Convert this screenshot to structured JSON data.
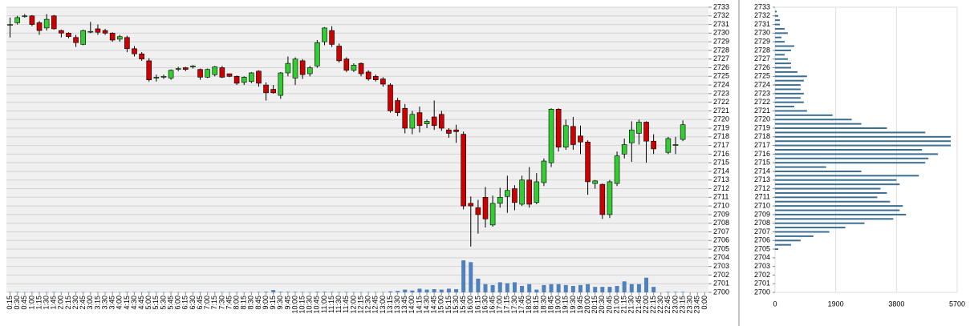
{
  "chart_data": [
    {
      "type": "candlestick",
      "categories": [
        "0:15",
        "0:30",
        "0:45",
        "1:00",
        "1:15",
        "1:30",
        "1:45",
        "2:00",
        "2:15",
        "2:30",
        "2:45",
        "3:00",
        "3:15",
        "3:30",
        "3:45",
        "4:00",
        "4:15",
        "4:30",
        "4:45",
        "5:00",
        "5:15",
        "5:30",
        "5:45",
        "6:00",
        "6:15",
        "6:30",
        "6:45",
        "7:00",
        "7:15",
        "7:30",
        "7:45",
        "8:00",
        "8:15",
        "8:30",
        "8:45",
        "9:00",
        "9:15",
        "9:30",
        "9:45",
        "10:00",
        "10:15",
        "10:30",
        "10:45",
        "11:00",
        "11:15",
        "11:30",
        "11:45",
        "12:00",
        "12:15",
        "12:30",
        "12:45",
        "13:00",
        "13:15",
        "13:30",
        "13:45",
        "14:00",
        "14:15",
        "14:30",
        "14:45",
        "15:00",
        "15:15",
        "15:30",
        "15:45",
        "16:00",
        "16:15",
        "16:30",
        "16:45",
        "17:00",
        "17:15",
        "17:30",
        "17:45",
        "18:00",
        "18:15",
        "18:30",
        "18:45",
        "19:00",
        "19:15",
        "19:30",
        "19:45",
        "20:00",
        "20:15",
        "20:30",
        "20:45",
        "21:00",
        "21:15",
        "21:30",
        "21:45",
        "22:00",
        "22:15",
        "22:30",
        "22:45",
        "23:00",
        "23:15",
        "23:30",
        "23:45",
        "0:00"
      ],
      "open": [
        2731,
        2731.2,
        2732,
        2732,
        2731.2,
        2730.6,
        2732,
        2730.3,
        2730,
        2729.5,
        2728.7,
        2730.2,
        2730.5,
        2730.3,
        2730,
        2729.3,
        2729.5,
        2728.2,
        2727.6,
        2726.8,
        2724.8,
        2724.9,
        2724.8,
        2725.8,
        2726,
        2726.1,
        2725.8,
        2724.9,
        2725.2,
        2726,
        2725.3,
        2725,
        2724.3,
        2724.4,
        2725.6,
        2724,
        2723.5,
        2722.8,
        2725.4,
        2724.8,
        2726.8,
        2725.3,
        2726.2,
        2729,
        2730.3,
        2728.5,
        2727,
        2725.7,
        2726.5,
        2725.5,
        2725,
        2724.7,
        2724,
        2722.2,
        2721.3,
        2719,
        2720.8,
        2719.5,
        2720.3,
        2720.6,
        2718.8,
        2718.8,
        2718.3,
        2710.3,
        2709.8,
        2711,
        2707.8,
        2710.3,
        2711.1,
        2712,
        2710.2,
        2713,
        2710.4,
        2712.7,
        2715,
        2721.2,
        2716.8,
        2719.2,
        2718.1,
        2717.4,
        2712.6,
        2712.5,
        2709,
        2712.6,
        2716,
        2717.3,
        2718.4,
        2719.7,
        2717.5,
        null,
        2716.2,
        2717,
        2717.7,
        null,
        null,
        null
      ],
      "high": [
        2731.8,
        2732,
        2732.2,
        2732.1,
        2731.4,
        2732.2,
        2732.1,
        2730.4,
        2730.1,
        2729.8,
        2730.4,
        2731.3,
        2731,
        2730.5,
        2730.1,
        2729.8,
        2729.7,
        2728.5,
        2727.8,
        2727.1,
        2725.2,
        2725.2,
        2725.8,
        2726.1,
        2726.1,
        2726.3,
        2725.9,
        2725.9,
        2726.2,
        2726.2,
        2725.3,
        2725.1,
        2725,
        2725.5,
        2725.7,
        2724.3,
        2724,
        2725.5,
        2727.3,
        2727.2,
        2727,
        2726.2,
        2729.2,
        2730.7,
        2730.8,
        2728.8,
        2727.2,
        2726.5,
        2726.6,
        2725.7,
        2725.2,
        2724.9,
        2724.2,
        2722.5,
        2721.8,
        2721,
        2721.5,
        2720,
        2722.2,
        2721,
        2719,
        2719.4,
        2718.6,
        2711.1,
        2710.7,
        2712.2,
        2711.2,
        2712.1,
        2713.5,
        2712.4,
        2713.5,
        2714.5,
        2713.8,
        2715.5,
        2721.3,
        2721.3,
        2720,
        2720.3,
        2719.3,
        2717.6,
        2713,
        2712.6,
        2713,
        2716.3,
        2717.8,
        2719.8,
        2720,
        2719.8,
        2718.3,
        null,
        2718,
        2718,
        2719.9,
        null,
        null,
        null
      ],
      "low": [
        2729.5,
        2731,
        2731.8,
        2730.8,
        2729.8,
        2730.3,
        2730.4,
        2729.5,
        2729.4,
        2728.4,
        2728.6,
        2730,
        2729.8,
        2729.8,
        2729,
        2729,
        2727.8,
        2727.3,
        2726.8,
        2724.4,
        2724.4,
        2724.7,
        2724.6,
        2725.6,
        2725.6,
        2725.9,
        2724.6,
        2724.8,
        2725,
        2724.8,
        2724.9,
        2724,
        2724,
        2724.2,
        2723.8,
        2722.2,
        2723,
        2722.4,
        2725,
        2724,
        2724.7,
        2725,
        2726,
        2728.6,
        2728.4,
        2726.6,
        2725.5,
        2725.5,
        2725,
        2724.5,
        2724.4,
        2723.8,
        2720.8,
        2720.4,
        2718.4,
        2718.3,
        2718.5,
        2719,
        2718.8,
        2718.7,
        2717.9,
        2717.3,
        2709.6,
        2705.3,
        2706.8,
        2707.5,
        2707.6,
        2709.8,
        2709.2,
        2709.5,
        2710,
        2709.8,
        2710.2,
        2712.3,
        2714.5,
        2716.3,
        2716.5,
        2716.5,
        2716,
        2711.3,
        2712,
        2708.5,
        2708.6,
        2712.3,
        2715.5,
        2715.1,
        2717.1,
        2715,
        2716,
        null,
        2716,
        2716,
        2717.5,
        null,
        null,
        null
      ],
      "close": [
        2731,
        2731.8,
        2732,
        2731,
        2730.3,
        2731.6,
        2730.5,
        2730,
        2729.6,
        2728.9,
        2730.3,
        2730.2,
        2730.1,
        2730,
        2729.2,
        2729.6,
        2728.2,
        2727.6,
        2727,
        2724.6,
        2724.9,
        2725,
        2725.7,
        2725.9,
        2725.8,
        2726.2,
        2724.9,
        2725.8,
        2726.1,
        2724.9,
        2725,
        2724.2,
        2724.9,
        2725.4,
        2724.2,
        2723.1,
        2723.1,
        2725.4,
        2726.5,
        2727,
        2725.2,
        2726,
        2728.9,
        2730.6,
        2728.7,
        2726.8,
        2725.7,
        2726.3,
        2725.3,
        2724.7,
        2724.6,
        2724.1,
        2721,
        2720.8,
        2719,
        2720.6,
        2719.3,
        2719.8,
        2719.3,
        2719,
        2718.4,
        2718.6,
        2710,
        2710,
        2709,
        2708.5,
        2710.3,
        2711,
        2711.8,
        2710.4,
        2713,
        2710.2,
        2712.8,
        2715.2,
        2721.2,
        2716.8,
        2719.3,
        2717.1,
        2717.4,
        2712.8,
        2712.9,
        2709,
        2712.8,
        2715.8,
        2717.1,
        2718.8,
        2719.7,
        2717.5,
        2716.6,
        null,
        2717.8,
        2717.1,
        2719.4,
        null,
        null,
        null
      ],
      "volume": [
        30,
        40,
        20,
        30,
        20,
        30,
        40,
        20,
        20,
        30,
        30,
        20,
        20,
        20,
        20,
        20,
        40,
        30,
        20,
        50,
        30,
        20,
        30,
        20,
        20,
        20,
        30,
        20,
        20,
        30,
        20,
        30,
        20,
        30,
        40,
        60,
        250,
        60,
        60,
        50,
        40,
        30,
        60,
        60,
        50,
        40,
        40,
        30,
        30,
        30,
        30,
        30,
        100,
        150,
        300,
        200,
        400,
        300,
        350,
        300,
        400,
        350,
        3500,
        3300,
        1500,
        900,
        800,
        1100,
        1000,
        1100,
        700,
        900,
        300,
        800,
        900,
        900,
        800,
        700,
        800,
        900,
        600,
        600,
        600,
        700,
        1200,
        900,
        900,
        1600,
        600,
        null,
        50,
        50,
        50,
        null,
        null,
        null
      ],
      "up_color": "#33cc33",
      "down_color": "#cc0000",
      "volume_color": "#4f81bd",
      "ylim": [
        2700,
        2733
      ],
      "yticks": [
        2700,
        2701,
        2702,
        2703,
        2704,
        2705,
        2706,
        2707,
        2708,
        2709,
        2710,
        2711,
        2712,
        2713,
        2714,
        2715,
        2716,
        2717,
        2718,
        2719,
        2720,
        2721,
        2722,
        2723,
        2724,
        2725,
        2726,
        2727,
        2728,
        2729,
        2730,
        2731,
        2732,
        2733
      ],
      "grid": true
    },
    {
      "type": "profile",
      "y": [
        2700,
        2700.5,
        2701,
        2701.5,
        2702,
        2702.5,
        2703,
        2703.5,
        2704,
        2704.5,
        2705,
        2705.5,
        2706,
        2706.5,
        2707,
        2707.5,
        2708,
        2708.5,
        2709,
        2709.5,
        2710,
        2710.5,
        2711,
        2711.5,
        2712,
        2712.5,
        2713,
        2713.5,
        2714,
        2714.5,
        2715,
        2715.5,
        2716,
        2716.5,
        2717,
        2717.5,
        2718,
        2718.5,
        2719,
        2719.5,
        2720,
        2720.5,
        2721,
        2721.5,
        2722,
        2722.5,
        2723,
        2723.5,
        2724,
        2724.5,
        2725,
        2725.5,
        2726,
        2726.5,
        2727,
        2727.5,
        2728,
        2728.5,
        2729,
        2729.5,
        2730,
        2730.5,
        2731,
        2731.5,
        2732,
        2732.5
      ],
      "values": [
        0,
        0,
        0,
        0,
        0,
        0,
        0,
        0,
        0,
        0,
        100,
        500,
        800,
        1200,
        1700,
        2200,
        2800,
        3700,
        4100,
        3900,
        4000,
        3600,
        3200,
        3500,
        3300,
        3900,
        3800,
        4500,
        2700,
        1600,
        4700,
        4800,
        5100,
        4600,
        5500,
        5500,
        5500,
        4700,
        3500,
        2700,
        2400,
        1800,
        1000,
        600,
        900,
        800,
        900,
        800,
        800,
        900,
        1000,
        700,
        500,
        500,
        400,
        300,
        500,
        600,
        300,
        200,
        400,
        300,
        150,
        150,
        100,
        50
      ],
      "color": "#3c6e91",
      "xlim": [
        0,
        5700
      ],
      "xticks": [
        0,
        1900,
        3800,
        5700
      ],
      "ylim": [
        2700,
        2733
      ],
      "yticks": [
        2700,
        2701,
        2702,
        2703,
        2704,
        2705,
        2706,
        2707,
        2708,
        2709,
        2710,
        2711,
        2712,
        2713,
        2714,
        2715,
        2716,
        2717,
        2718,
        2719,
        2720,
        2721,
        2722,
        2723,
        2724,
        2725,
        2726,
        2727,
        2728,
        2729,
        2730,
        2731,
        2732,
        2733
      ],
      "grid": true
    }
  ]
}
